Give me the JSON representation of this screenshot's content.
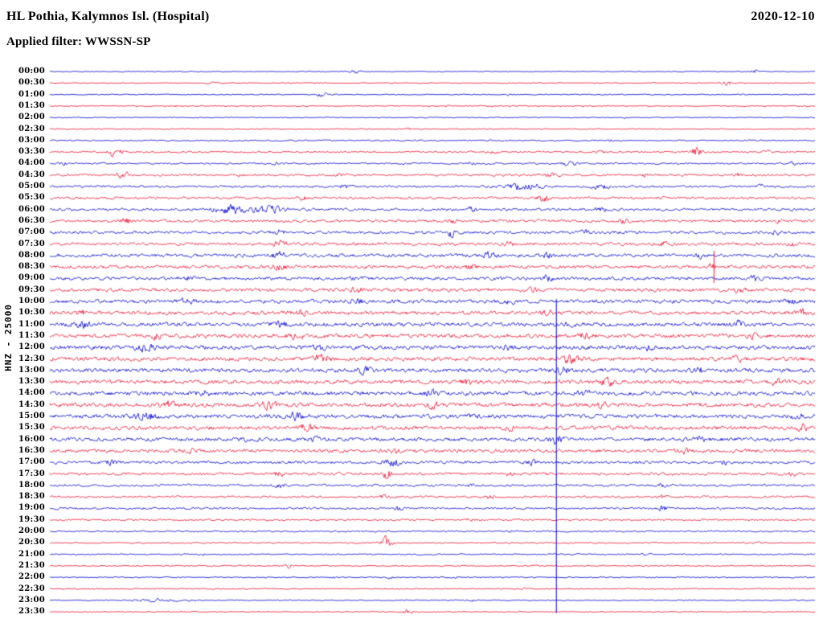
{
  "header": {
    "title": "HL Pothia, Kalymnos Isl. (Hospital)",
    "date": "2020-12-10",
    "filter_label": "Applied filter: WWSSN-SP"
  },
  "y_axis_label": "HNZ - 25000",
  "colors": {
    "background": "#ffffff",
    "text": "#000000",
    "trace_blue": "#0000d4",
    "trace_red": "#ee0f2e"
  },
  "chart_data": {
    "type": "line",
    "title": "24-hour helicorder seismogram, 48 half-hour traces, alternating blue/red",
    "station": "HL Pothia, Kalymnos Isl. (Hospital)",
    "channel_scale": "HNZ - 25000",
    "date": "2020-12-10",
    "row_duration_minutes": 30,
    "x_axis": "time within each 30-minute row (unlabeled)",
    "y_axis": "time of day (row start, HH:MM)",
    "grid": false,
    "legend": "none",
    "rows": [
      {
        "time": "00:00",
        "color": "blue",
        "amp": 0.7,
        "bursts": [
          [
            0.4,
            5,
            3
          ],
          [
            0.92,
            4,
            3.5
          ]
        ]
      },
      {
        "time": "00:30",
        "color": "red",
        "amp": 0.7,
        "bursts": [
          [
            0.21,
            4,
            2
          ],
          [
            0.885,
            5,
            4
          ]
        ]
      },
      {
        "time": "01:00",
        "color": "blue",
        "amp": 0.9,
        "bursts": [
          [
            0.355,
            7,
            3
          ],
          [
            0.6,
            4,
            1.5
          ]
        ]
      },
      {
        "time": "01:30",
        "color": "red",
        "amp": 0.9,
        "bursts": [
          [
            0.165,
            3,
            1.5
          ],
          [
            0.52,
            3,
            1.5
          ]
        ]
      },
      {
        "time": "02:00",
        "color": "blue",
        "amp": 0.8,
        "bursts": [
          [
            0.75,
            3,
            1
          ]
        ]
      },
      {
        "time": "02:30",
        "color": "red",
        "amp": 0.9,
        "bursts": [
          [
            0.47,
            4,
            1.5
          ]
        ]
      },
      {
        "time": "03:00",
        "color": "blue",
        "amp": 1.1,
        "bursts": [
          [
            0.73,
            4,
            2
          ]
        ]
      },
      {
        "time": "03:30",
        "color": "red",
        "amp": 1.4,
        "bursts": [
          [
            0.085,
            6,
            7
          ],
          [
            0.58,
            4,
            2.5
          ],
          [
            0.72,
            4,
            2.5
          ],
          [
            0.845,
            5,
            8
          ],
          [
            0.935,
            4,
            2.5
          ]
        ]
      },
      {
        "time": "04:00",
        "color": "blue",
        "amp": 1.5,
        "bursts": [
          [
            0.02,
            4,
            2.5
          ],
          [
            0.3,
            4,
            2
          ],
          [
            0.55,
            4,
            2
          ],
          [
            0.68,
            7,
            4
          ],
          [
            0.97,
            4,
            2.5
          ]
        ]
      },
      {
        "time": "04:30",
        "color": "red",
        "amp": 1.8,
        "bursts": [
          [
            0.095,
            5,
            6
          ],
          [
            0.25,
            4,
            2
          ],
          [
            0.38,
            4,
            2.5
          ],
          [
            0.655,
            5,
            4
          ],
          [
            0.78,
            4,
            2.5
          ],
          [
            0.9,
            4,
            2.5
          ]
        ]
      },
      {
        "time": "05:00",
        "color": "blue",
        "amp": 2.0,
        "bursts": [
          [
            0.385,
            5,
            3
          ],
          [
            0.62,
            14,
            6
          ],
          [
            0.72,
            7,
            4
          ],
          [
            0.93,
            4,
            2.5
          ]
        ]
      },
      {
        "time": "05:30",
        "color": "red",
        "amp": 2.0,
        "bursts": [
          [
            0.33,
            5,
            3.5
          ],
          [
            0.645,
            6,
            5
          ],
          [
            0.8,
            4,
            2.5
          ]
        ]
      },
      {
        "time": "06:00",
        "color": "blue",
        "amp": 2.2,
        "bursts": [
          [
            0.235,
            16,
            6
          ],
          [
            0.285,
            14,
            6
          ],
          [
            0.55,
            5,
            3
          ],
          [
            0.72,
            5,
            3.5
          ]
        ]
      },
      {
        "time": "06:30",
        "color": "red",
        "amp": 2.3,
        "bursts": [
          [
            0.1,
            6,
            4
          ],
          [
            0.53,
            5,
            3.5
          ],
          [
            0.75,
            5,
            3
          ],
          [
            0.95,
            4,
            3
          ]
        ]
      },
      {
        "time": "07:00",
        "color": "blue",
        "amp": 2.5,
        "bursts": [
          [
            0.3,
            5,
            3.5
          ],
          [
            0.525,
            3,
            8
          ],
          [
            0.7,
            5,
            3
          ],
          [
            0.95,
            5,
            3.5
          ]
        ]
      },
      {
        "time": "07:30",
        "color": "red",
        "amp": 2.5,
        "bursts": [
          [
            0.3,
            6,
            4.5
          ],
          [
            0.6,
            5,
            3
          ],
          [
            0.8,
            5,
            3.5
          ],
          [
            0.97,
            4,
            3
          ]
        ]
      },
      {
        "time": "08:00",
        "color": "blue",
        "amp": 2.8,
        "bursts": [
          [
            0.3,
            6,
            5
          ],
          [
            0.575,
            6,
            5
          ],
          [
            0.65,
            5,
            3.5
          ],
          [
            0.85,
            5,
            3
          ]
        ]
      },
      {
        "time": "08:30",
        "color": "red",
        "amp": 2.8,
        "bursts": [
          [
            0.3,
            6,
            4.5
          ],
          [
            0.55,
            5,
            3.5
          ],
          [
            0.865,
            2.5,
            7
          ]
        ]
      },
      {
        "time": "09:00",
        "color": "blue",
        "amp": 2.8,
        "bursts": [
          [
            0.18,
            5,
            3.5
          ],
          [
            0.4,
            5,
            3.5
          ],
          [
            0.65,
            5,
            3.5
          ],
          [
            0.92,
            5,
            3.5
          ]
        ]
      },
      {
        "time": "09:30",
        "color": "red",
        "amp": 2.9,
        "bursts": [
          [
            0.4,
            6,
            4.5
          ],
          [
            0.63,
            5,
            3.5
          ],
          [
            0.9,
            5,
            3.5
          ]
        ]
      },
      {
        "time": "10:00",
        "color": "blue",
        "amp": 3.1,
        "bursts": [
          [
            0.18,
            6,
            4.5
          ],
          [
            0.4,
            6,
            4.5
          ],
          [
            0.6,
            5,
            3.5
          ],
          [
            0.965,
            6,
            5
          ]
        ]
      },
      {
        "time": "10:30",
        "color": "red",
        "amp": 3.1,
        "bursts": [
          [
            0.04,
            5,
            4.5
          ],
          [
            0.33,
            5,
            3.5
          ],
          [
            0.65,
            5,
            3.5
          ],
          [
            0.985,
            5,
            4.5
          ]
        ]
      },
      {
        "time": "11:00",
        "color": "blue",
        "amp": 3.3,
        "bursts": [
          [
            0.04,
            7,
            5
          ],
          [
            0.3,
            6,
            4.5
          ],
          [
            0.68,
            5,
            3.5
          ],
          [
            0.9,
            5,
            4.5
          ]
        ]
      },
      {
        "time": "11:30",
        "color": "red",
        "amp": 3.3,
        "bursts": [
          [
            0.135,
            6,
            5
          ],
          [
            0.32,
            6,
            4.5
          ],
          [
            0.7,
            6,
            5
          ],
          [
            0.92,
            5,
            3.5
          ]
        ]
      },
      {
        "time": "12:00",
        "color": "blue",
        "amp": 3.4,
        "bursts": [
          [
            0.125,
            8,
            6
          ],
          [
            0.35,
            6,
            4.5
          ],
          [
            0.6,
            5,
            3.5
          ],
          [
            0.78,
            5,
            4.5
          ]
        ]
      },
      {
        "time": "12:30",
        "color": "red",
        "amp": 3.4,
        "bursts": [
          [
            0.355,
            7,
            6
          ],
          [
            0.68,
            7,
            6
          ],
          [
            0.9,
            5,
            3.5
          ]
        ]
      },
      {
        "time": "13:00",
        "color": "blue",
        "amp": 3.4,
        "bursts": [
          [
            0.41,
            6,
            5
          ],
          [
            0.67,
            6,
            5
          ],
          [
            0.85,
            5,
            3.5
          ]
        ]
      },
      {
        "time": "13:30",
        "color": "red",
        "amp": 3.4,
        "bursts": [
          [
            0.55,
            6,
            4.5
          ],
          [
            0.73,
            7,
            5
          ],
          [
            0.95,
            5,
            3.5
          ]
        ]
      },
      {
        "time": "14:00",
        "color": "blue",
        "amp": 3.4,
        "bursts": [
          [
            0.2,
            6,
            4.5
          ],
          [
            0.5,
            6,
            4.5
          ],
          [
            0.7,
            6,
            5
          ]
        ]
      },
      {
        "time": "14:30",
        "color": "red",
        "amp": 3.4,
        "bursts": [
          [
            0.155,
            7,
            5
          ],
          [
            0.285,
            7,
            5
          ],
          [
            0.5,
            6,
            4.5
          ],
          [
            0.72,
            5,
            3.5
          ]
        ]
      },
      {
        "time": "15:00",
        "color": "blue",
        "amp": 3.4,
        "bursts": [
          [
            0.125,
            8,
            6
          ],
          [
            0.32,
            6,
            5
          ],
          [
            0.55,
            5,
            3.5
          ],
          [
            0.975,
            5,
            4.5
          ]
        ]
      },
      {
        "time": "15:30",
        "color": "red",
        "amp": 3.2,
        "bursts": [
          [
            0.335,
            6,
            5
          ],
          [
            0.6,
            5,
            3.5
          ],
          [
            0.985,
            6,
            5
          ]
        ]
      },
      {
        "time": "16:00",
        "color": "blue",
        "amp": 3.1,
        "bursts": [
          [
            0.25,
            5,
            3.5
          ],
          [
            0.35,
            5,
            4
          ],
          [
            0.662,
            6,
            7
          ],
          [
            0.85,
            5,
            3.5
          ]
        ]
      },
      {
        "time": "16:30",
        "color": "red",
        "amp": 2.9,
        "bursts": [
          [
            0.18,
            5,
            3.5
          ],
          [
            0.45,
            5,
            3.5
          ],
          [
            0.83,
            5,
            3.5
          ]
        ]
      },
      {
        "time": "17:00",
        "color": "blue",
        "amp": 2.5,
        "bursts": [
          [
            0.08,
            5,
            3.5
          ],
          [
            0.448,
            6,
            6
          ],
          [
            0.63,
            5,
            3.5
          ],
          [
            0.88,
            4,
            3.5
          ]
        ]
      },
      {
        "time": "17:30",
        "color": "red",
        "amp": 2.3,
        "bursts": [
          [
            0.3,
            5,
            3.5
          ],
          [
            0.44,
            4,
            8
          ],
          [
            0.6,
            4,
            2.5
          ],
          [
            0.97,
            4,
            3.5
          ]
        ]
      },
      {
        "time": "18:00",
        "color": "blue",
        "amp": 2.0,
        "bursts": [
          [
            0.3,
            5,
            3.5
          ],
          [
            0.55,
            4,
            2.5
          ],
          [
            0.8,
            4,
            2.5
          ]
        ]
      },
      {
        "time": "18:30",
        "color": "red",
        "amp": 1.8,
        "bursts": [
          [
            0.44,
            5,
            4.5
          ],
          [
            0.575,
            4,
            3.5
          ],
          [
            0.8,
            4,
            2.5
          ]
        ]
      },
      {
        "time": "19:00",
        "color": "blue",
        "amp": 1.8,
        "bursts": [
          [
            0.455,
            4,
            3.5
          ],
          [
            0.8,
            5,
            3.5
          ]
        ]
      },
      {
        "time": "19:30",
        "color": "red",
        "amp": 1.5,
        "bursts": [
          [
            0.55,
            4,
            2.5
          ],
          [
            0.78,
            3,
            1.5
          ]
        ]
      },
      {
        "time": "20:00",
        "color": "blue",
        "amp": 1.3,
        "bursts": [
          [
            0.25,
            3,
            1.5
          ],
          [
            0.6,
            3,
            1.5
          ]
        ]
      },
      {
        "time": "20:30",
        "color": "red",
        "amp": 1.2,
        "bursts": [
          [
            0.44,
            4,
            10
          ],
          [
            0.93,
            3,
            2.5
          ]
        ]
      },
      {
        "time": "21:00",
        "color": "blue",
        "amp": 1.1,
        "bursts": [
          [
            0.2,
            3,
            1.5
          ],
          [
            0.78,
            4,
            2.5
          ]
        ]
      },
      {
        "time": "21:30",
        "color": "red",
        "amp": 1.0,
        "bursts": [
          [
            0.31,
            4,
            3.5
          ]
        ]
      },
      {
        "time": "22:00",
        "color": "blue",
        "amp": 1.0,
        "bursts": [
          [
            0.37,
            3,
            1.5
          ],
          [
            0.445,
            4,
            3.5
          ],
          [
            0.53,
            3,
            1.5
          ]
        ]
      },
      {
        "time": "22:30",
        "color": "red",
        "amp": 0.9,
        "bursts": [
          [
            0.62,
            4,
            1.5
          ],
          [
            0.97,
            3,
            1.5
          ]
        ]
      },
      {
        "time": "23:00",
        "color": "blue",
        "amp": 0.9,
        "bursts": [
          [
            0.145,
            25,
            2.2
          ],
          [
            0.55,
            5,
            2.5
          ]
        ]
      },
      {
        "time": "23:30",
        "color": "red",
        "amp": 0.9,
        "bursts": [
          [
            0.468,
            4,
            4.5
          ]
        ]
      }
    ],
    "vertical_spikes": [
      {
        "x_frac": 0.662,
        "top_row": 19.8,
        "bottom_row": 47.1,
        "color": "blue"
      },
      {
        "x_frac": 0.868,
        "top_row": 15.6,
        "bottom_row": 18.4,
        "color": "red"
      }
    ]
  }
}
